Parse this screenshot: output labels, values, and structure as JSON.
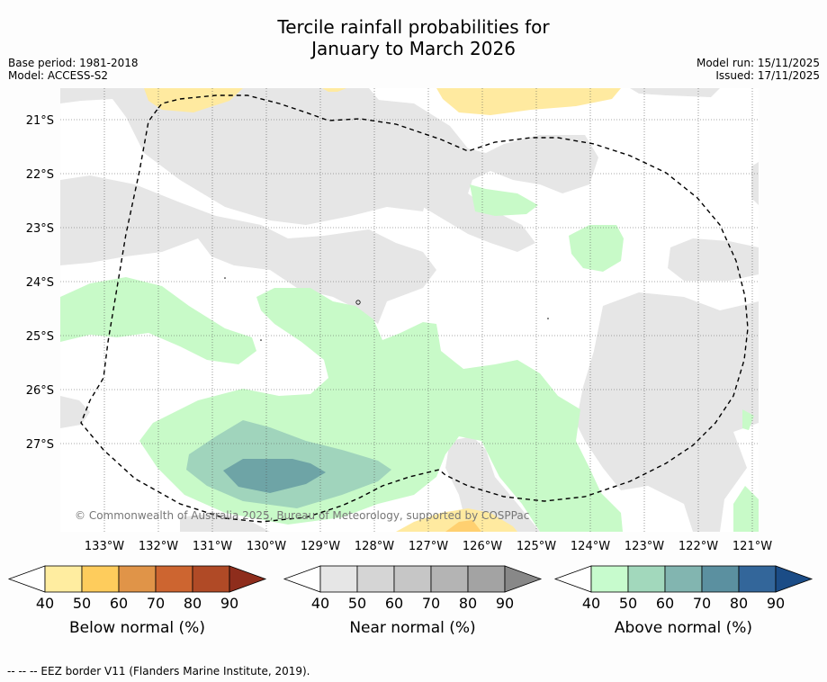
{
  "title": {
    "line1": "Tercile rainfall probabilities for",
    "line2": "January to March 2026"
  },
  "meta": {
    "base_period": "Base period: 1981-2018",
    "model": "Model: ACCESS-S2",
    "model_run": "Model run: 15/11/2025",
    "issued": "Issued: 17/11/2025"
  },
  "map": {
    "lat_labels": [
      "21°S",
      "22°S",
      "23°S",
      "24°S",
      "25°S",
      "26°S",
      "27°S"
    ],
    "lon_labels": [
      "133°W",
      "132°W",
      "131°W",
      "130°W",
      "129°W",
      "128°W",
      "127°W",
      "126°W",
      "125°W",
      "124°W",
      "123°W",
      "122°W",
      "121°W"
    ],
    "copyright": "© Commonwealth of Australia 2025, Bureau of Meteorology, supported by COSPPac",
    "colors": {
      "near_normal_40": "#e6e6e6",
      "above_40": "#c8fac8",
      "above_50": "#a0d4bc",
      "above_60": "#6ea4a6",
      "below_40": "#ffeaa0",
      "below_50": "#ffd070"
    }
  },
  "colorbars": [
    {
      "name": "below",
      "label": "Below normal (%)",
      "ticks": [
        "40",
        "50",
        "60",
        "70",
        "80",
        "90"
      ],
      "colors": [
        "#ffeda0",
        "#fecc5c",
        "#e09448",
        "#cd6530",
        "#b04a26",
        "#8e2d1c"
      ]
    },
    {
      "name": "near",
      "label": "Near normal (%)",
      "ticks": [
        "40",
        "50",
        "60",
        "70",
        "80",
        "90"
      ],
      "colors": [
        "#e6e6e6",
        "#d5d5d5",
        "#c6c6c6",
        "#b4b4b4",
        "#a3a3a3",
        "#888888"
      ]
    },
    {
      "name": "above",
      "label": "Above normal (%)",
      "ticks": [
        "40",
        "50",
        "60",
        "70",
        "80",
        "90"
      ],
      "colors": [
        "#c7fbcd",
        "#a2d8bc",
        "#82b5b0",
        "#5b90a0",
        "#33669a",
        "#1b4c86"
      ]
    }
  ],
  "footnote": "--  --  -- EEZ border V11 (Flanders Marine Institute, 2019)."
}
